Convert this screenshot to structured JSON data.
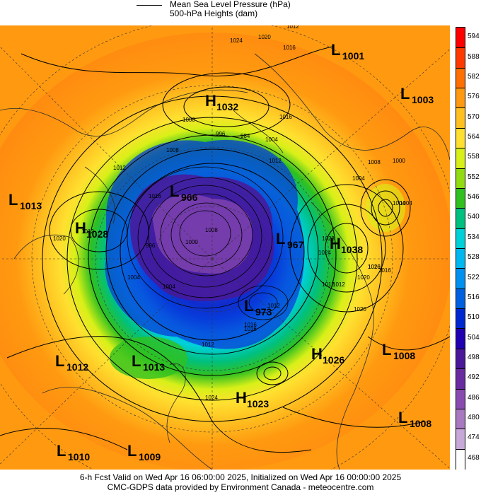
{
  "legend": {
    "mslp_label": "Mean Sea Level Pressure (hPa)",
    "heights_label": "500-hPa Heights (dam)"
  },
  "footer": {
    "line1": "6-h Fcst Valid on Wed Apr 16 06:00:00 2025, Initialized on Wed Apr 16 00:00:00 2025",
    "line2": "CMC-GDPS data provided by Environment Canada - meteocentre.com"
  },
  "colorbar": {
    "levels": [
      "594",
      "588",
      "582",
      "576",
      "570",
      "564",
      "558",
      "552",
      "546",
      "540",
      "534",
      "528",
      "522",
      "516",
      "510",
      "504",
      "498",
      "492",
      "486",
      "480",
      "474",
      "468"
    ],
    "colors": [
      "#ff0000",
      "#ff3a00",
      "#ff7000",
      "#ff9a10",
      "#ffc020",
      "#ffe030",
      "#d8f018",
      "#90dc10",
      "#30c020",
      "#00c080",
      "#00d0d8",
      "#00b8f0",
      "#0090f0",
      "#0060e0",
      "#0028d0",
      "#2000b0",
      "#4a1898",
      "#6a2aa0",
      "#8a4ab0",
      "#a878c0",
      "#c8a8d8",
      "#ffffff"
    ]
  },
  "pressure_systems": [
    {
      "type": "L",
      "value": "1001"
    },
    {
      "type": "L",
      "value": "1003"
    },
    {
      "type": "H",
      "value": "1032"
    },
    {
      "type": "L",
      "value": "966"
    },
    {
      "type": "L",
      "value": "1013"
    },
    {
      "type": "H",
      "value": "1028"
    },
    {
      "type": "L",
      "value": "967"
    },
    {
      "type": "H",
      "value": "1038"
    },
    {
      "type": "L",
      "value": "973"
    },
    {
      "type": "L",
      "value": "1012"
    },
    {
      "type": "L",
      "value": "1013"
    },
    {
      "type": "H",
      "value": "1026"
    },
    {
      "type": "L",
      "value": "1008"
    },
    {
      "type": "H",
      "value": "1023"
    },
    {
      "type": "L",
      "value": "1008"
    },
    {
      "type": "L",
      "value": "1010"
    },
    {
      "type": "L",
      "value": "1009"
    }
  ],
  "isobar_labels": [
    "1012",
    "1024",
    "1020",
    "1016",
    "1000",
    "996",
    "984",
    "1004",
    "1016",
    "1012",
    "1012",
    "1020",
    "1012",
    "1016",
    "1008",
    "996",
    "1000",
    "1008",
    "1004",
    "1004",
    "1028",
    "1024",
    "1020",
    "1016",
    "1012",
    "1004",
    "1000",
    "1008",
    "1004",
    "1012",
    "1016",
    "1020",
    "1016",
    "1012",
    "1020",
    "1004",
    "1012",
    "1016",
    "1024"
  ],
  "map": {
    "ocean_fill": "#ff9a10",
    "land_outline": "#555555",
    "contour_color": "#000000"
  }
}
